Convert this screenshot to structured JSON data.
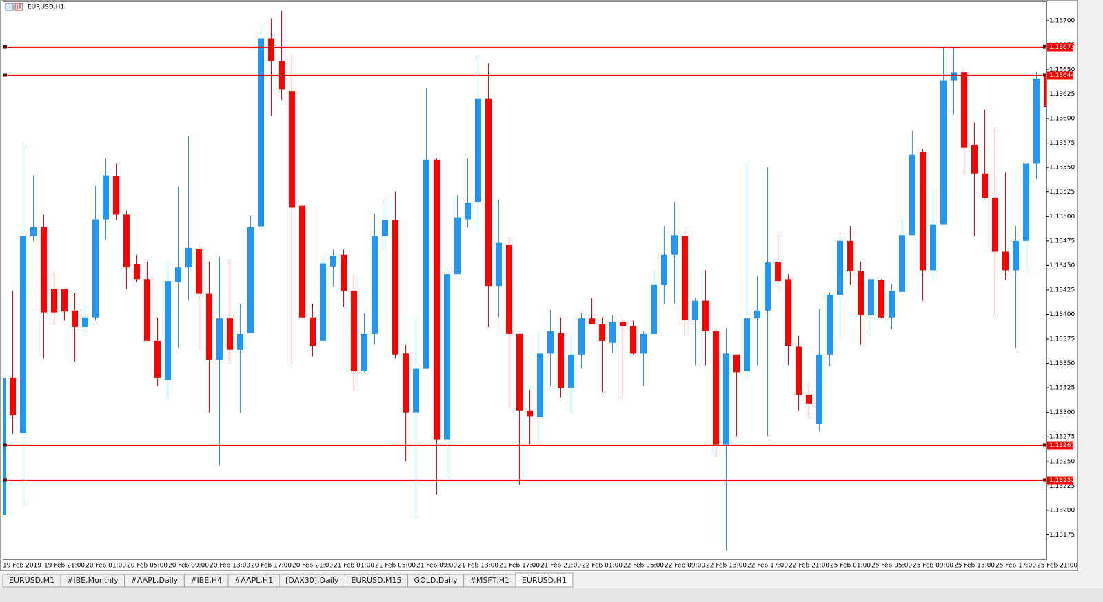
{
  "chart_data": {
    "type": "candlestick",
    "title": "EURUSD,H1",
    "categories": [
      "19 Feb 2019",
      null,
      null,
      null,
      "19 Feb 21:00",
      null,
      null,
      null,
      "20 Feb 01:00",
      null,
      null,
      null,
      "20 Feb 05:00",
      null,
      null,
      null,
      "20 Feb 09:00",
      null,
      null,
      null,
      "20 Feb 13:00",
      null,
      null,
      null,
      "20 Feb 17:00",
      null,
      null,
      null,
      "20 Feb 21:00",
      null,
      null,
      null,
      "21 Feb 01:00",
      null,
      null,
      null,
      "21 Feb 05:00",
      null,
      null,
      null,
      "21 Feb 09:00",
      null,
      null,
      null,
      "21 Feb 13:00",
      null,
      null,
      null,
      "21 Feb 17:00",
      null,
      null,
      null,
      "21 Feb 21:00",
      null,
      null,
      null,
      "22 Feb 01:00",
      null,
      null,
      null,
      "22 Feb 05:00",
      null,
      null,
      null,
      "22 Feb 09:00",
      null,
      null,
      null,
      "22 Feb 13:00",
      null,
      null,
      null,
      "22 Feb 17:00",
      null,
      null,
      null,
      "22 Feb 21:00",
      null,
      null,
      null,
      "25 Feb 01:00",
      null,
      null,
      null,
      "25 Feb 05:00",
      null,
      null,
      null,
      "25 Feb 09:00",
      null,
      null,
      null,
      "25 Feb 13:00",
      null,
      null,
      null,
      "25 Feb 17:00",
      null,
      null,
      null,
      "25 Feb 21:00",
      null
    ],
    "open": [
      1.13195,
      1.13335,
      1.13279,
      1.1348,
      1.13489,
      1.13426,
      1.13426,
      1.13404,
      1.13387,
      1.13397,
      1.13497,
      1.13541,
      1.13502,
      1.13451,
      1.13436,
      1.13373,
      1.13333,
      1.13433,
      1.13448,
      1.13467,
      1.13421,
      1.13354,
      1.13396,
      1.13364,
      1.13381,
      1.1349,
      1.13682,
      1.13659,
      1.13628,
      1.13511,
      1.13397,
      1.13373,
      1.13449,
      1.13461,
      1.13424,
      1.13342,
      1.1338,
      1.1348,
      1.13496,
      1.1336,
      1.133,
      1.13345,
      1.13558,
      1.13272,
      1.13441,
      1.13497,
      1.13515,
      1.1362,
      1.13429,
      1.13471,
      1.1338,
      1.13302,
      1.13295,
      1.1336,
      1.13381,
      1.13325,
      1.13359,
      1.13396,
      1.1339,
      1.13371,
      1.13392,
      1.13388,
      1.1336,
      1.1338,
      1.1343,
      1.13461,
      1.1348,
      1.13394,
      1.13414,
      1.13383,
      1.13267,
      1.13359,
      1.13342,
      1.13396,
      1.13404,
      1.13453,
      1.13436,
      1.13367,
      1.13318,
      1.13288,
      1.13359,
      1.1342,
      1.13475,
      1.13444,
      1.13399,
      1.13435,
      1.13397,
      1.13423,
      1.13481,
      1.13566,
      1.13445,
      1.13492,
      1.13639,
      1.13647,
      1.13573,
      1.13544,
      1.13519,
      1.13464,
      1.13445,
      1.13475,
      1.13554,
      1.13644
    ],
    "high": [
      1.13335,
      1.13424,
      1.13573,
      1.13542,
      1.13502,
      1.13443,
      1.13426,
      1.13422,
      1.13408,
      1.13531,
      1.13559,
      1.13554,
      1.13506,
      1.13461,
      1.13454,
      1.13397,
      1.13455,
      1.1353,
      1.13582,
      1.13471,
      1.13454,
      1.13459,
      1.13455,
      1.13411,
      1.13501,
      1.13694,
      1.13702,
      1.1371,
      1.13665,
      1.13511,
      1.13411,
      1.13457,
      1.13466,
      1.13466,
      1.1344,
      1.13401,
      1.13503,
      1.13515,
      1.13525,
      1.13369,
      1.13396,
      1.13631,
      1.13559,
      1.13447,
      1.13522,
      1.13559,
      1.13664,
      1.13656,
      1.13517,
      1.13478,
      1.1338,
      1.13323,
      1.13383,
      1.13405,
      1.13397,
      1.13378,
      1.13401,
      1.13417,
      1.13397,
      1.13399,
      1.13395,
      1.13394,
      1.13383,
      1.13445,
      1.1349,
      1.13515,
      1.13486,
      1.13417,
      1.13445,
      1.13386,
      1.13386,
      1.13359,
      1.13556,
      1.1344,
      1.1355,
      1.13482,
      1.13441,
      1.13378,
      1.13329,
      1.13406,
      1.13422,
      1.1348,
      1.1349,
      1.13454,
      1.13438,
      1.13436,
      1.13431,
      1.13497,
      1.13587,
      1.13569,
      1.13527,
      1.13673,
      1.13673,
      1.13649,
      1.13596,
      1.13609,
      1.1359,
      1.13545,
      1.1349,
      1.13556,
      1.13648,
      1.13647
    ],
    "low": [
      1.13193,
      1.13278,
      1.13205,
      1.13475,
      1.13355,
      1.1339,
      1.13394,
      1.13352,
      1.1338,
      1.13394,
      1.13476,
      1.13496,
      1.13426,
      1.13433,
      1.13373,
      1.13327,
      1.13313,
      1.13366,
      1.13414,
      1.13366,
      1.133,
      1.13246,
      1.13352,
      1.13299,
      1.13381,
      1.1349,
      1.13603,
      1.13619,
      1.13348,
      1.13397,
      1.13357,
      1.13373,
      1.13429,
      1.13408,
      1.13323,
      1.13341,
      1.13369,
      1.13464,
      1.13355,
      1.1325,
      1.13193,
      1.13345,
      1.13216,
      1.13233,
      1.13441,
      1.13489,
      1.13485,
      1.13387,
      1.13397,
      1.13306,
      1.13226,
      1.13267,
      1.13269,
      1.13327,
      1.13315,
      1.13299,
      1.13345,
      1.1339,
      1.13321,
      1.13361,
      1.13315,
      1.13359,
      1.13327,
      1.1338,
      1.13411,
      1.13411,
      1.13378,
      1.13348,
      1.13348,
      1.13255,
      1.13159,
      1.13276,
      1.13337,
      1.13348,
      1.13276,
      1.13426,
      1.13348,
      1.13302,
      1.13295,
      1.13281,
      1.13347,
      1.13376,
      1.1343,
      1.13369,
      1.1338,
      1.13396,
      1.13385,
      1.13422,
      1.13481,
      1.13414,
      1.13434,
      1.13492,
      1.13604,
      1.13543,
      1.1348,
      1.13518,
      1.13399,
      1.13435,
      1.13366,
      1.13443,
      1.13538,
      1.13612
    ],
    "close": [
      1.13335,
      1.13297,
      1.1348,
      1.13489,
      1.13402,
      1.13402,
      1.13403,
      1.13387,
      1.13397,
      1.13497,
      1.13542,
      1.13502,
      1.13448,
      1.13436,
      1.13373,
      1.13335,
      1.13434,
      1.13448,
      1.13468,
      1.13421,
      1.13354,
      1.13396,
      1.13364,
      1.1338,
      1.13489,
      1.13682,
      1.13659,
      1.1363,
      1.13509,
      1.13397,
      1.13368,
      1.13452,
      1.1346,
      1.13424,
      1.13342,
      1.1338,
      1.1348,
      1.13496,
      1.13359,
      1.133,
      1.13345,
      1.13558,
      1.13272,
      1.13441,
      1.13499,
      1.13514,
      1.1362,
      1.13429,
      1.13473,
      1.1338,
      1.13302,
      1.13296,
      1.1336,
      1.13383,
      1.13325,
      1.13359,
      1.13396,
      1.1339,
      1.13373,
      1.13392,
      1.13388,
      1.1336,
      1.1338,
      1.1343,
      1.13461,
      1.13481,
      1.13394,
      1.13414,
      1.13383,
      1.13267,
      1.1336,
      1.13341,
      1.13396,
      1.13404,
      1.13453,
      1.13434,
      1.13368,
      1.13318,
      1.13309,
      1.13359,
      1.1342,
      1.13475,
      1.13444,
      1.13399,
      1.13436,
      1.13397,
      1.13424,
      1.13481,
      1.13563,
      1.13445,
      1.13492,
      1.13639,
      1.13647,
      1.1357,
      1.13544,
      1.13519,
      1.13464,
      1.13445,
      1.13475,
      1.13554,
      1.13641,
      1.13612
    ],
    "up_color": "#2196f3",
    "down_color": "#ff0000",
    "ylim": [
      1.1315,
      1.13721
    ],
    "yticks": [
      {
        "value": 1.137,
        "label": "1.13700"
      },
      1.13675,
      {
        "value": 1.1365,
        "label": "1.13650"
      },
      1.13625,
      {
        "value": 1.136,
        "label": "1.13600"
      },
      1.13575,
      {
        "value": 1.1355,
        "label": "1.13550"
      },
      1.13525,
      {
        "value": 1.135,
        "label": "1.13500"
      },
      1.13475,
      {
        "value": 1.1345,
        "label": "1.13450"
      },
      1.13425,
      {
        "value": 1.134,
        "label": "1.13400"
      },
      1.13375,
      {
        "value": 1.1335,
        "label": "1.13350"
      },
      1.13325,
      {
        "value": 1.133,
        "label": "1.13300"
      },
      1.13275,
      {
        "value": 1.1325,
        "label": "1.13250"
      },
      1.13225,
      {
        "value": 1.132,
        "label": "1.13200"
      },
      1.13175
    ],
    "grid": false,
    "levels": [
      1.13673,
      1.13644,
      1.13267,
      1.13231
    ],
    "level_color": "#ff0000"
  },
  "tabs": [
    "EURUSD,M1",
    "#IBE,Monthly",
    "#AAPL,Daily",
    "#IBE,H4",
    "#AAPL,H1",
    "[DAX30],Daily",
    "EURUSD,M15",
    "GOLD,Daily",
    "#MSFT,H1",
    "EURUSD,H1"
  ],
  "active_tab": 9
}
